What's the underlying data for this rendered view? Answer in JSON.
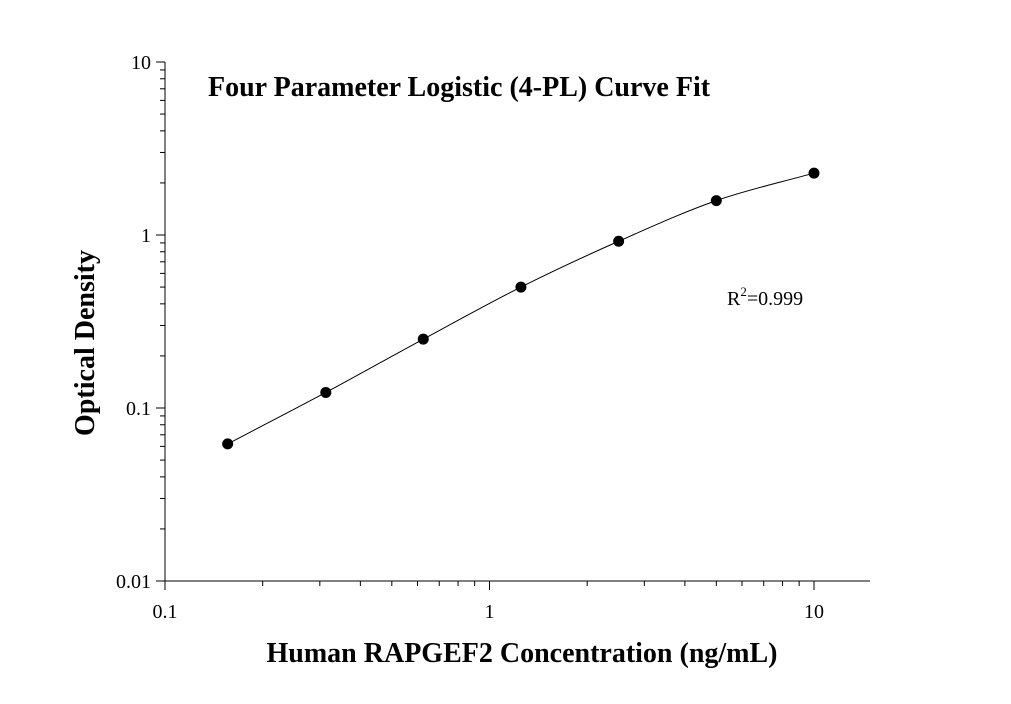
{
  "chart_data": {
    "type": "scatter",
    "title": "Four Parameter Logistic (4-PL) Curve Fit",
    "xlabel": "Human RAPGEF2 Concentration (ng/mL)",
    "ylabel": "Optical Density",
    "x_scale": "log",
    "y_scale": "log",
    "xlim": [
      0.1,
      15
    ],
    "ylim": [
      0.01,
      10
    ],
    "x_ticks": [
      0.1,
      1,
      10
    ],
    "x_tick_labels": [
      "0.1",
      "1",
      "10"
    ],
    "y_ticks": [
      0.01,
      0.1,
      1,
      10
    ],
    "y_tick_labels": [
      "0.01",
      "0.1",
      "1",
      "10"
    ],
    "grid": false,
    "legend": "none",
    "series": [
      {
        "x": [
          0.156,
          0.313,
          0.625,
          1.25,
          2.5,
          5,
          10
        ],
        "y": [
          0.062,
          0.123,
          0.25,
          0.5,
          0.92,
          1.58,
          2.28
        ]
      }
    ],
    "annotations": [
      {
        "base": "R",
        "superscript": "2",
        "text": "=0.999"
      }
    ],
    "marker_color": "#000000",
    "line_color": "#000000"
  }
}
